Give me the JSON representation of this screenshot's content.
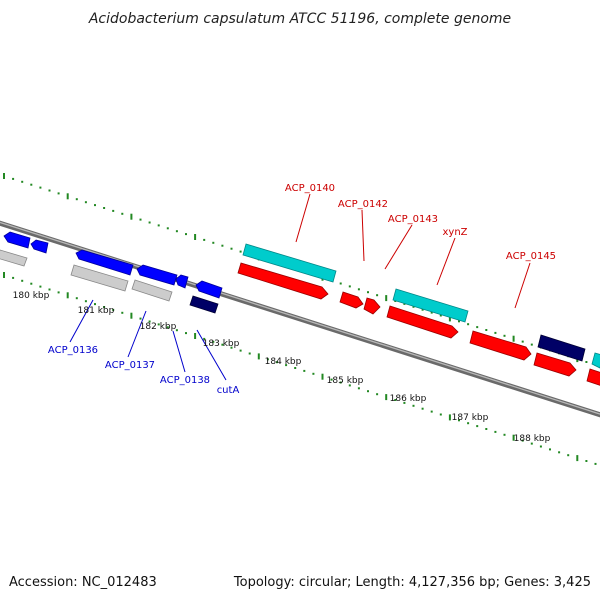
{
  "title": "Acidobacterium capsulatum ATCC 51196, complete genome",
  "footer": {
    "accession": "Accession: NC_012483",
    "info": "Topology: circular; Length: 4,127,356 bp; Genes: 3,425"
  },
  "colors": {
    "forward_cds": "#ff0000",
    "reverse_cds": "#0000ff",
    "forward_rna": "#00cccc",
    "reverse_rna": "#cccccc",
    "other_feature": "#000066",
    "tick": "#228822",
    "forward_label": "#cc0000",
    "reverse_label": "#0000cc"
  },
  "scale_labels": [
    "180 kbp",
    "181 kbp",
    "182 kbp",
    "183 kbp",
    "184 kbp",
    "185 kbp",
    "186 kbp",
    "187 kbp",
    "188 kbp"
  ],
  "gene_labels": {
    "forward": [
      "ACP_0140",
      "ACP_0142",
      "ACP_0143",
      "xynZ",
      "ACP_0145"
    ],
    "reverse": [
      "ACP_0136",
      "ACP_0137",
      "ACP_0138",
      "cutA"
    ]
  }
}
